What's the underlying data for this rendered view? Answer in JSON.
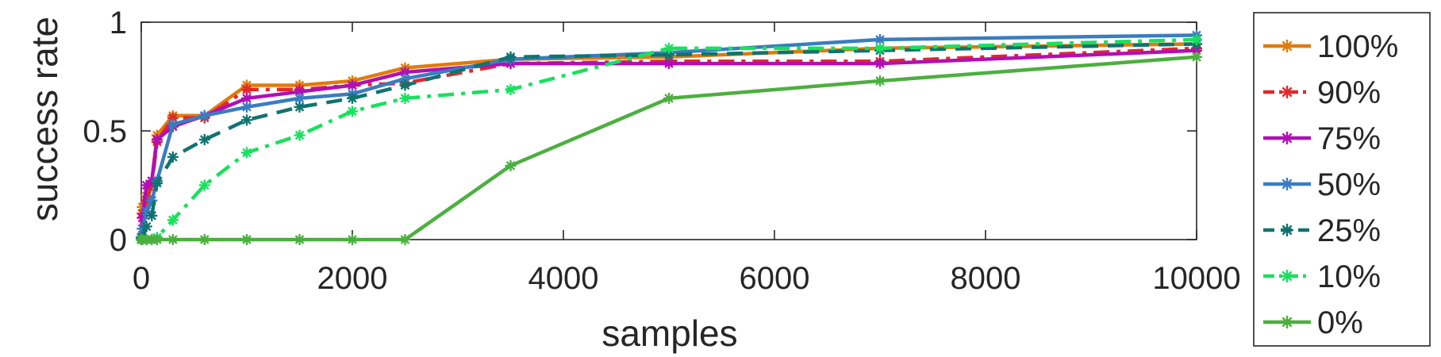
{
  "chart_data": {
    "type": "line",
    "title": "",
    "xlabel": "samples",
    "ylabel": "success rate",
    "xlim": [
      0,
      10000
    ],
    "ylim": [
      0,
      1
    ],
    "x_ticks": [
      0,
      2000,
      4000,
      6000,
      8000,
      10000
    ],
    "x_tick_labels": [
      "0",
      "2000",
      "4000",
      "6000",
      "8000",
      "10000"
    ],
    "y_ticks": [
      0,
      0.5,
      1
    ],
    "y_tick_labels": [
      "0",
      "0.5",
      "1"
    ],
    "grid": false,
    "legend_position": "outside-right",
    "series": [
      {
        "name": "100%",
        "color": "#e07b0c",
        "dash": "solid",
        "points": [
          [
            0,
            0.01
          ],
          [
            10,
            0.15
          ],
          [
            50,
            0.2
          ],
          [
            100,
            0.27
          ],
          [
            150,
            0.48
          ],
          [
            300,
            0.57
          ],
          [
            600,
            0.57
          ],
          [
            1000,
            0.71
          ],
          [
            1500,
            0.71
          ],
          [
            2000,
            0.73
          ],
          [
            2500,
            0.79
          ],
          [
            3500,
            0.83
          ],
          [
            5000,
            0.84
          ],
          [
            7000,
            0.88
          ],
          [
            10000,
            0.9
          ]
        ]
      },
      {
        "name": "90%",
        "color": "#e3282a",
        "dash": "dashdot",
        "points": [
          [
            0,
            0.01
          ],
          [
            10,
            0.12
          ],
          [
            50,
            0.18
          ],
          [
            100,
            0.25
          ],
          [
            150,
            0.45
          ],
          [
            300,
            0.56
          ],
          [
            600,
            0.56
          ],
          [
            1000,
            0.69
          ],
          [
            1500,
            0.69
          ],
          [
            2000,
            0.71
          ],
          [
            2500,
            0.72
          ],
          [
            3500,
            0.81
          ],
          [
            5000,
            0.82
          ],
          [
            7000,
            0.82
          ],
          [
            10000,
            0.88
          ]
        ]
      },
      {
        "name": "75%",
        "color": "#b10fb5",
        "dash": "solid",
        "points": [
          [
            0,
            0.01
          ],
          [
            10,
            0.1
          ],
          [
            50,
            0.25
          ],
          [
            100,
            0.27
          ],
          [
            150,
            0.46
          ],
          [
            300,
            0.52
          ],
          [
            600,
            0.57
          ],
          [
            1000,
            0.65
          ],
          [
            1500,
            0.68
          ],
          [
            2000,
            0.71
          ],
          [
            2500,
            0.77
          ],
          [
            3500,
            0.81
          ],
          [
            5000,
            0.81
          ],
          [
            7000,
            0.81
          ],
          [
            10000,
            0.87
          ]
        ]
      },
      {
        "name": "50%",
        "color": "#3a7dbf",
        "dash": "solid",
        "points": [
          [
            0,
            0.01
          ],
          [
            10,
            0.05
          ],
          [
            50,
            0.13
          ],
          [
            100,
            0.18
          ],
          [
            150,
            0.27
          ],
          [
            300,
            0.53
          ],
          [
            600,
            0.57
          ],
          [
            1000,
            0.61
          ],
          [
            1500,
            0.65
          ],
          [
            2000,
            0.67
          ],
          [
            2500,
            0.74
          ],
          [
            3500,
            0.83
          ],
          [
            5000,
            0.86
          ],
          [
            7000,
            0.92
          ],
          [
            10000,
            0.94
          ]
        ]
      },
      {
        "name": "25%",
        "color": "#0f7470",
        "dash": "dashed",
        "points": [
          [
            0,
            0.0
          ],
          [
            10,
            0.01
          ],
          [
            50,
            0.06
          ],
          [
            100,
            0.11
          ],
          [
            150,
            0.26
          ],
          [
            300,
            0.38
          ],
          [
            600,
            0.46
          ],
          [
            1000,
            0.55
          ],
          [
            1500,
            0.61
          ],
          [
            2000,
            0.65
          ],
          [
            2500,
            0.71
          ],
          [
            3500,
            0.84
          ],
          [
            5000,
            0.85
          ],
          [
            7000,
            0.87
          ],
          [
            10000,
            0.9
          ]
        ]
      },
      {
        "name": "10%",
        "color": "#19e05e",
        "dash": "dashdot",
        "points": [
          [
            0,
            0.0
          ],
          [
            10,
            0.0
          ],
          [
            50,
            0.0
          ],
          [
            100,
            0.0
          ],
          [
            150,
            0.01
          ],
          [
            300,
            0.09
          ],
          [
            600,
            0.25
          ],
          [
            1000,
            0.4
          ],
          [
            1500,
            0.48
          ],
          [
            2000,
            0.59
          ],
          [
            2500,
            0.65
          ],
          [
            3500,
            0.69
          ],
          [
            5000,
            0.88
          ],
          [
            7000,
            0.88
          ],
          [
            10000,
            0.92
          ]
        ]
      },
      {
        "name": "0%",
        "color": "#4caf3f",
        "dash": "solid",
        "points": [
          [
            0,
            0.0
          ],
          [
            10,
            0.0
          ],
          [
            50,
            0.0
          ],
          [
            100,
            0.0
          ],
          [
            150,
            0.0
          ],
          [
            300,
            0.0
          ],
          [
            600,
            0.0
          ],
          [
            1000,
            0.0
          ],
          [
            1500,
            0.0
          ],
          [
            2000,
            0.0
          ],
          [
            2500,
            0.0
          ],
          [
            3500,
            0.34
          ],
          [
            5000,
            0.65
          ],
          [
            7000,
            0.73
          ],
          [
            10000,
            0.84
          ]
        ]
      }
    ]
  }
}
